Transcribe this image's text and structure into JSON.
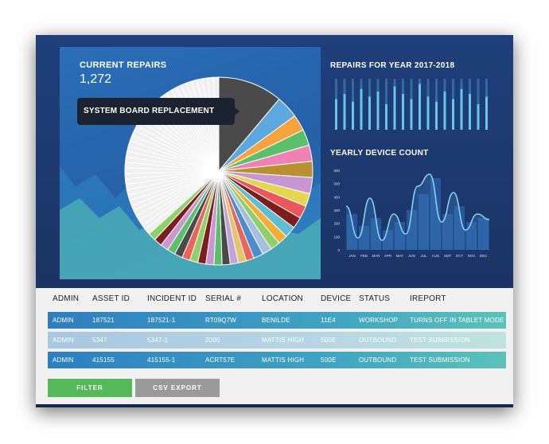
{
  "current_repairs": {
    "label": "CURRENT REPAIRS",
    "value": "1,272"
  },
  "tooltip": "SYSTEM BOARD REPLACEMENT",
  "repairs_year": {
    "title": "REPAIRS FOR YEAR 2017-2018",
    "levels": [
      0.6,
      0.7,
      0.55,
      0.8,
      0.65,
      0.75,
      0.5,
      0.85,
      0.7,
      0.6,
      0.9,
      0.65,
      0.55,
      0.75,
      0.6,
      0.8,
      0.7,
      0.5,
      0.65
    ]
  },
  "yearly_device": {
    "title": "YEARLY DEVICE COUNT",
    "y_ticks": [
      "600",
      "500",
      "400",
      "300",
      "200",
      "100",
      "0"
    ],
    "months": [
      "JAN",
      "FEB",
      "MAR",
      "APR",
      "MAY",
      "JUN",
      "JUL",
      "AUG",
      "SEP",
      "OCT",
      "NOV",
      "DEC"
    ]
  },
  "pie_colors": [
    "#4a4a4a",
    "#5ea8e0",
    "#f5a33c",
    "#5cbf6a",
    "#ef82b5",
    "#b8902f",
    "#c996d4",
    "#e4d64e",
    "#e8585c",
    "#7c1e1e",
    "#5fbcd3",
    "#f3ad38",
    "#8fd06a",
    "#a5c0dd",
    "#4a8ed0",
    "#e9655b",
    "#e7c36b",
    "#c0a5d8",
    "#f0f0f0"
  ],
  "table": {
    "headers": [
      "ADMIN",
      "ASSET ID",
      "INCIDENT ID",
      "SERIAL #",
      "LOCATION",
      "DEVICE",
      "STATUS",
      "IREPORT"
    ],
    "rows": [
      [
        "ADMIN",
        "187521",
        "187521-1",
        "RT09Q7W",
        "BENILDE",
        "11E4",
        "WORKSHOP",
        "TURNS OFF IN TABLET MODE"
      ],
      [
        "ADMIN",
        "5347",
        "5347-1",
        "2000",
        "MATTIS HIGH",
        "500E",
        "OUTBOUND",
        "TEST SUBMISSION"
      ],
      [
        "ADMIN",
        "415155",
        "415155-1",
        "ACRT57E",
        "MATTIS HIGH",
        "500E",
        "OUTBOUND",
        "TEST SUBMISSION"
      ]
    ]
  },
  "buttons": {
    "filter": "FILTER",
    "csv": "CSV EXPORT"
  }
}
